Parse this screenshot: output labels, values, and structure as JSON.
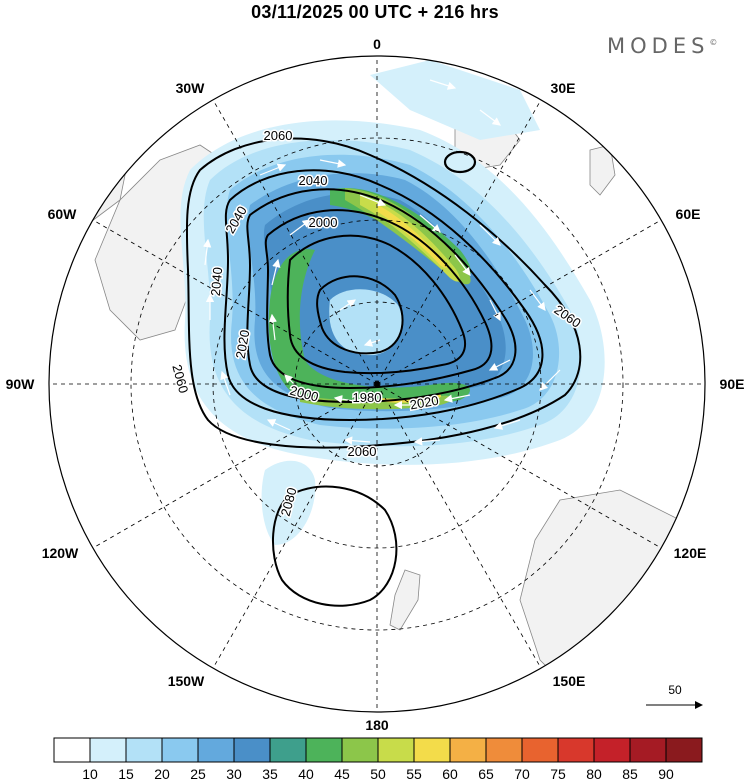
{
  "title": "03/11/2025  00 UTC  + 216 hrs",
  "brand": "MODES",
  "brand_mark": "©",
  "map": {
    "projection": "south-polar-stereographic",
    "longitude_labels": [
      "0",
      "30E",
      "60E",
      "90E",
      "120E",
      "150E",
      "180",
      "150W",
      "120W",
      "90W",
      "60W",
      "30W"
    ],
    "contour_labels": [
      "2060",
      "2040",
      "2040",
      "2000",
      "2040",
      "2020",
      "2060",
      "2000",
      "1980",
      "2020",
      "2060",
      "2060",
      "2080"
    ],
    "reference_vector_label": "50"
  },
  "colorbar": {
    "ticks": [
      "10",
      "15",
      "20",
      "25",
      "30",
      "35",
      "40",
      "45",
      "50",
      "55",
      "60",
      "65",
      "70",
      "75",
      "80",
      "85",
      "90"
    ],
    "colors": [
      "#ffffff",
      "#d4f0fb",
      "#b3e1f7",
      "#8ac9ef",
      "#63a9dd",
      "#4a8fc8",
      "#3e9f8c",
      "#4db35a",
      "#8cc64a",
      "#c8dc4a",
      "#f3dc4a",
      "#f4b045",
      "#ef8c3a",
      "#e8632f",
      "#d8382c",
      "#c42129",
      "#a51b24",
      "#8a1a1e"
    ]
  }
}
